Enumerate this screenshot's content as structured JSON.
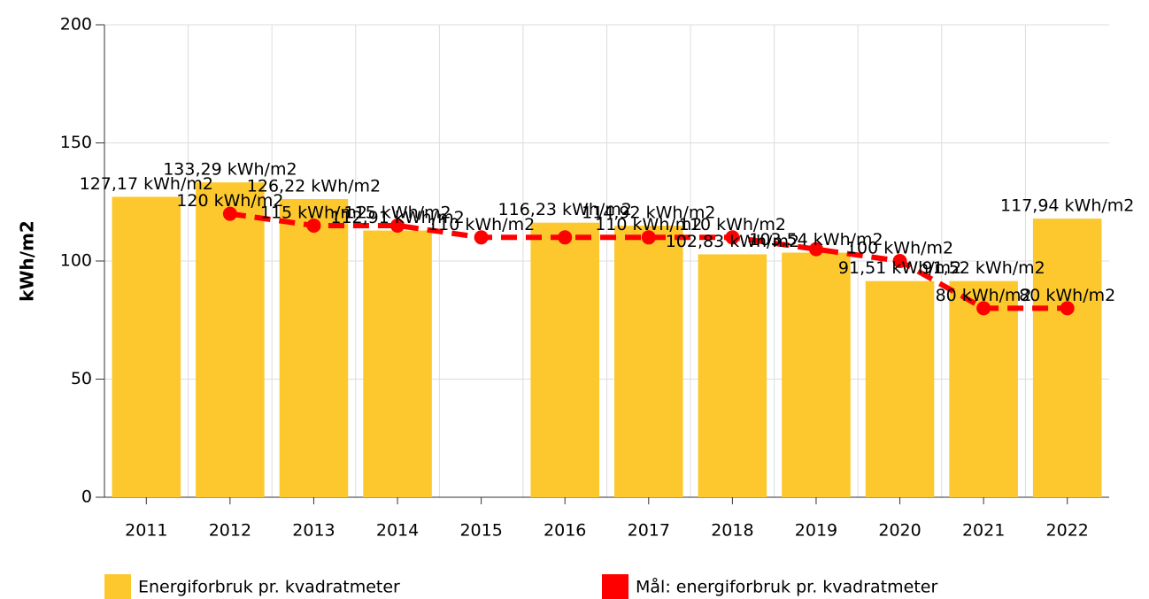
{
  "chart_data": {
    "type": "bar",
    "y_label": "kWh/m2",
    "categories": [
      "2011",
      "2012",
      "2013",
      "2014",
      "2015",
      "2016",
      "2017",
      "2018",
      "2019",
      "2020",
      "2021",
      "2022"
    ],
    "series": [
      {
        "name": "Energiforbruk pr. kvadratmeter",
        "type": "bar",
        "color": "#fcc82e",
        "values": [
          127.17,
          133.29,
          126.22,
          112.91,
          null,
          116.23,
          114.92,
          102.83,
          103.54,
          91.51,
          91.52,
          117.94
        ],
        "value_labels": [
          "127,17 kWh/m2",
          "133,29 kWh/m2",
          "126,22 kWh/m2",
          "112,91 kWh/m2",
          null,
          "116,23 kWh/m2",
          "114,92 kWh/m2",
          "102,83 kWh/m2",
          "103,54 kWh/m2",
          "91,51 kWh/m2",
          "91,52 kWh/m2",
          "117,94 kWh/m2"
        ]
      },
      {
        "name": "Mål: energiforbruk pr. kvadratmeter",
        "type": "line",
        "color": "#ff0000",
        "values": [
          null,
          120,
          115,
          115,
          110,
          110,
          110,
          110,
          105,
          100,
          80,
          80
        ],
        "value_labels": [
          null,
          "120 kWh/m2",
          "115 kWh/m2",
          "115 kWh/m2",
          "110 kWh/m2",
          null,
          "110 kWh/m2",
          "110 kWh/m2",
          null,
          "100 kWh/m2",
          "80 kWh/m2",
          "80 kWh/m2"
        ]
      }
    ],
    "ylim": [
      0,
      200
    ],
    "yticks": [
      0,
      50,
      100,
      150,
      200
    ],
    "grid": true
  }
}
